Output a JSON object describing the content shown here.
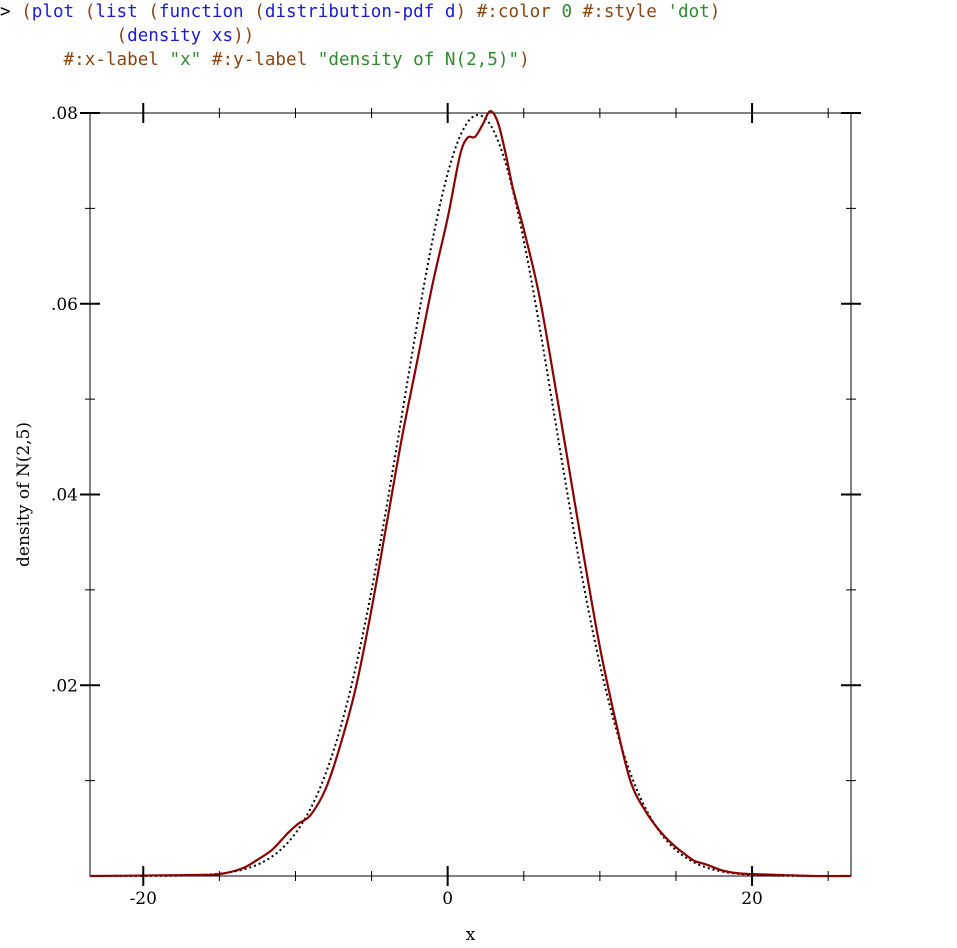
{
  "code": {
    "lines": [
      [
        {
          "t": "> ",
          "c": "plain"
        },
        {
          "t": "(",
          "c": "paren"
        },
        {
          "t": "plot",
          "c": "sym"
        },
        {
          "t": " ",
          "c": "plain"
        },
        {
          "t": "(",
          "c": "paren"
        },
        {
          "t": "list",
          "c": "sym"
        },
        {
          "t": " ",
          "c": "plain"
        },
        {
          "t": "(",
          "c": "paren"
        },
        {
          "t": "function",
          "c": "sym"
        },
        {
          "t": " ",
          "c": "plain"
        },
        {
          "t": "(",
          "c": "paren"
        },
        {
          "t": "distribution-pdf",
          "c": "sym"
        },
        {
          "t": " d",
          "c": "sym"
        },
        {
          "t": ")",
          "c": "paren"
        },
        {
          "t": " #:color ",
          "c": "kw"
        },
        {
          "t": "0",
          "c": "num"
        },
        {
          "t": " #:style ",
          "c": "kw"
        },
        {
          "t": "'dot",
          "c": "str"
        },
        {
          "t": ")",
          "c": "paren"
        }
      ],
      [
        {
          "t": "           ",
          "c": "plain"
        },
        {
          "t": "(",
          "c": "paren"
        },
        {
          "t": "density",
          "c": "sym"
        },
        {
          "t": " xs",
          "c": "sym"
        },
        {
          "t": "))",
          "c": "paren"
        }
      ],
      [
        {
          "t": "      #:x-label ",
          "c": "kw"
        },
        {
          "t": "\"x\"",
          "c": "str"
        },
        {
          "t": " #:y-label ",
          "c": "kw"
        },
        {
          "t": "\"density of N(2,5)\"",
          "c": "str"
        },
        {
          "t": ")",
          "c": "paren"
        }
      ]
    ]
  },
  "colors": {
    "paren": "#8b4513",
    "sym": "#1b1bd6",
    "kw": "#8b4513",
    "num": "#2e8b2e",
    "str": "#2e8b2e",
    "plain": "#000000",
    "density_line": "#8b0000",
    "pdf_line": "#000000"
  },
  "chart_data": {
    "type": "line",
    "xlabel": "x",
    "ylabel": "density of N(2,5)",
    "xlim": [
      -23.5,
      26.5
    ],
    "ylim": [
      0,
      0.08
    ],
    "x_ticks": [
      -20,
      0,
      20
    ],
    "x_tick_labels": [
      "-20",
      "0",
      "20"
    ],
    "y_ticks": [
      0.02,
      0.04,
      0.06,
      0.08
    ],
    "y_tick_labels": [
      ".02",
      ".04",
      ".06",
      ".08"
    ],
    "grid": false,
    "series": [
      {
        "style": "dot",
        "color": "#000000",
        "distribution": {
          "family": "normal",
          "mean": 2,
          "stddev": 5
        }
      },
      {
        "style": "solid",
        "color": "#8b0000",
        "x": [
          -23.5,
          -17,
          -15,
          -13.5,
          -12.5,
          -11.5,
          -10.5,
          -9.8,
          -9,
          -8,
          -7,
          -6,
          -5,
          -4,
          -3,
          -2,
          -1,
          0,
          0.8,
          1.3,
          1.8,
          2.3,
          2.8,
          3.3,
          3.8,
          4.3,
          5,
          6,
          7,
          8,
          9,
          10,
          11,
          12,
          13,
          14,
          14.8,
          15.5,
          16.2,
          17,
          18,
          19,
          20,
          22,
          24,
          26.5
        ],
        "y": [
          0,
          0.0001,
          0.0002,
          0.0008,
          0.0017,
          0.0028,
          0.0045,
          0.0055,
          0.0064,
          0.0092,
          0.014,
          0.02,
          0.028,
          0.037,
          0.046,
          0.054,
          0.062,
          0.069,
          0.0755,
          0.0774,
          0.0775,
          0.0788,
          0.0802,
          0.079,
          0.0758,
          0.072,
          0.0678,
          0.061,
          0.052,
          0.0425,
          0.033,
          0.024,
          0.0165,
          0.01,
          0.0068,
          0.0046,
          0.0033,
          0.0024,
          0.0016,
          0.0012,
          0.0006,
          0.0003,
          0.0002,
          0.0001,
          0,
          0
        ]
      }
    ]
  }
}
